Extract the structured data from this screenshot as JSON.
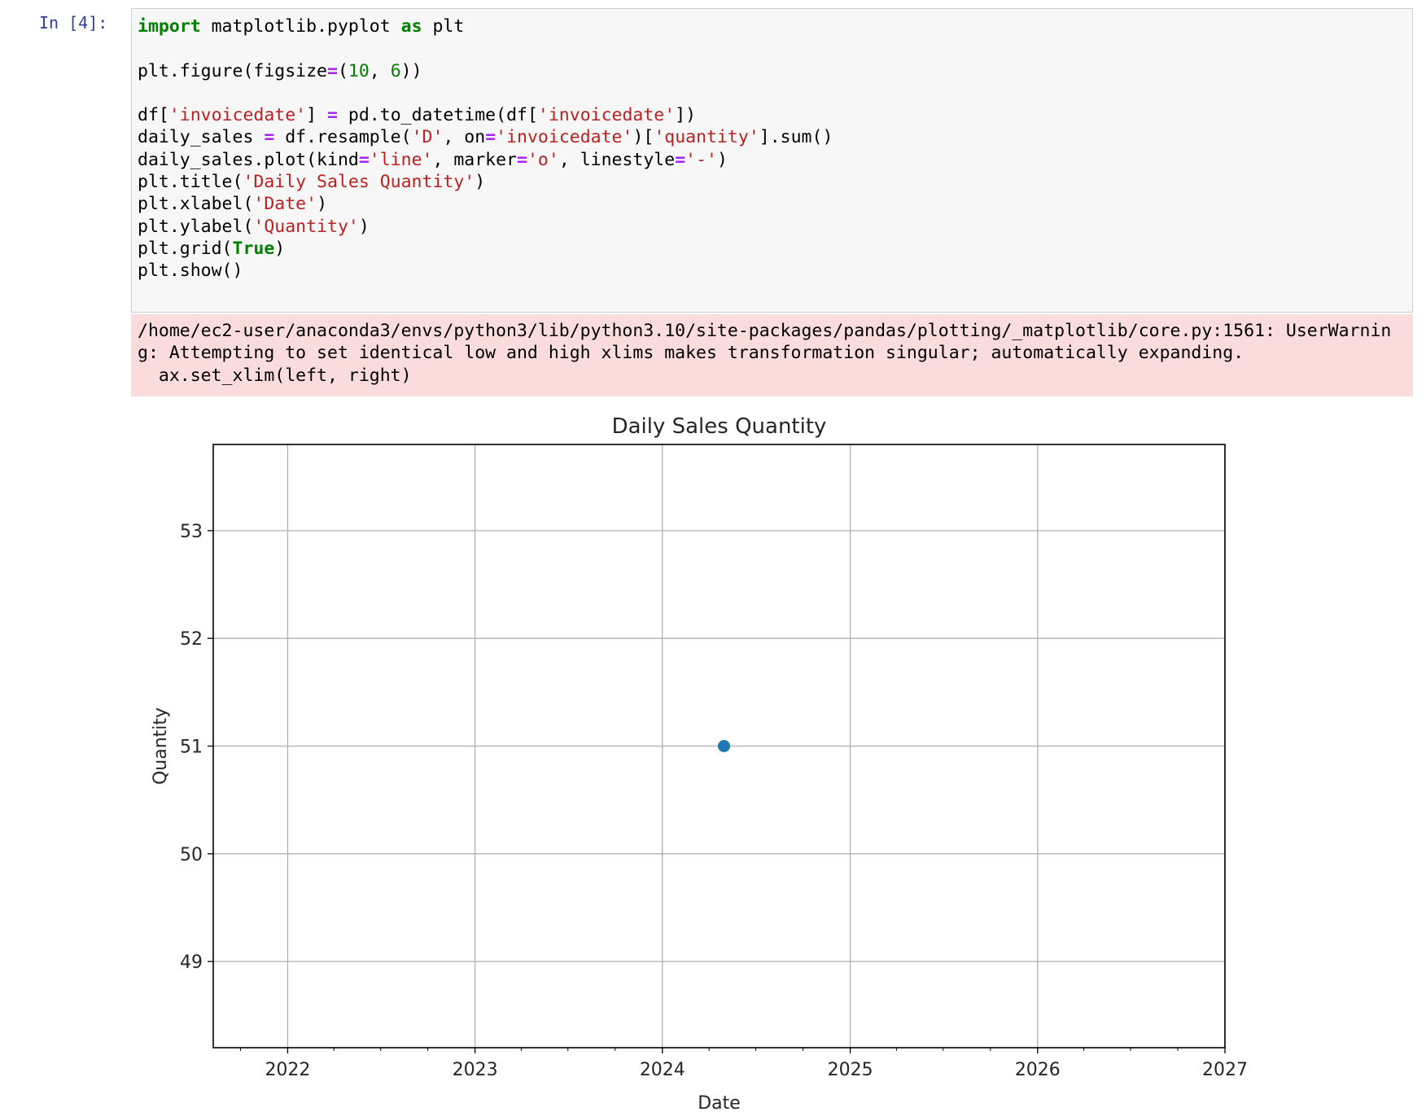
{
  "cell": {
    "prompt": "In [4]:",
    "code_lines": [
      [
        {
          "t": "import",
          "c": "kw"
        },
        {
          "t": " matplotlib.pyplot "
        },
        {
          "t": "as",
          "c": "kw"
        },
        {
          "t": " plt"
        }
      ],
      [],
      [
        {
          "t": "plt.figure(figsize"
        },
        {
          "t": "=",
          "c": "op"
        },
        {
          "t": "("
        },
        {
          "t": "10",
          "c": "num"
        },
        {
          "t": ", "
        },
        {
          "t": "6",
          "c": "num"
        },
        {
          "t": "))"
        }
      ],
      [],
      [
        {
          "t": "df["
        },
        {
          "t": "'invoicedate'",
          "c": "str"
        },
        {
          "t": "] "
        },
        {
          "t": "=",
          "c": "op"
        },
        {
          "t": " pd.to_datetime(df["
        },
        {
          "t": "'invoicedate'",
          "c": "str"
        },
        {
          "t": "])"
        }
      ],
      [
        {
          "t": "daily_sales "
        },
        {
          "t": "=",
          "c": "op"
        },
        {
          "t": " df.resample("
        },
        {
          "t": "'D'",
          "c": "str"
        },
        {
          "t": ", on"
        },
        {
          "t": "=",
          "c": "op"
        },
        {
          "t": "'invoicedate'",
          "c": "str"
        },
        {
          "t": ")["
        },
        {
          "t": "'quantity'",
          "c": "str"
        },
        {
          "t": "].sum()"
        }
      ],
      [
        {
          "t": "daily_sales.plot(kind"
        },
        {
          "t": "=",
          "c": "op"
        },
        {
          "t": "'line'",
          "c": "str"
        },
        {
          "t": ", marker"
        },
        {
          "t": "=",
          "c": "op"
        },
        {
          "t": "'o'",
          "c": "str"
        },
        {
          "t": ", linestyle"
        },
        {
          "t": "=",
          "c": "op"
        },
        {
          "t": "'-'",
          "c": "str"
        },
        {
          "t": ")"
        }
      ],
      [
        {
          "t": "plt.title("
        },
        {
          "t": "'Daily Sales Quantity'",
          "c": "str"
        },
        {
          "t": ")"
        }
      ],
      [
        {
          "t": "plt.xlabel("
        },
        {
          "t": "'Date'",
          "c": "str"
        },
        {
          "t": ")"
        }
      ],
      [
        {
          "t": "plt.ylabel("
        },
        {
          "t": "'Quantity'",
          "c": "str"
        },
        {
          "t": ")"
        }
      ],
      [
        {
          "t": "plt.grid("
        },
        {
          "t": "True",
          "c": "kw"
        },
        {
          "t": ")"
        }
      ],
      [
        {
          "t": "plt.show()"
        }
      ]
    ],
    "stderr": "/home/ec2-user/anaconda3/envs/python3/lib/python3.10/site-packages/pandas/plotting/_matplotlib/core.py:1561: UserWarning: Attempting to set identical low and high xlims makes transformation singular; automatically expanding.\n  ax.set_xlim(left, right)"
  },
  "colors": {
    "prompt": "#303f9f",
    "keyword": "#008000",
    "operator": "#aa22ff",
    "string": "#ba2121",
    "stderr_bg": "#fadcdc",
    "marker": "#1f77b4",
    "grid": "#b0b0b0"
  },
  "chart_data": {
    "type": "line",
    "title": "Daily Sales Quantity",
    "xlabel": "Date",
    "ylabel": "Quantity",
    "grid": true,
    "xlim": [
      "2021-08-09",
      "2027-01-01"
    ],
    "ylim": [
      48.2,
      53.8
    ],
    "x_ticks": [
      "2022",
      "2023",
      "2024",
      "2025",
      "2026",
      "2027"
    ],
    "y_ticks": [
      49,
      50,
      51,
      52,
      53
    ],
    "series": [
      {
        "marker": "o",
        "linestyle": "-",
        "points": [
          {
            "x": "2024-04-30",
            "y": 51
          }
        ]
      }
    ]
  }
}
